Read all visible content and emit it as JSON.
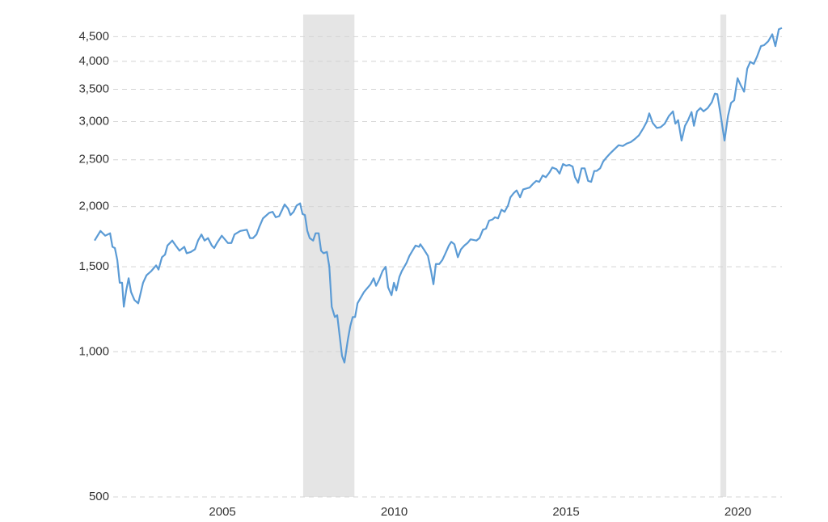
{
  "chart_data": {
    "type": "line",
    "log_scale": true,
    "grid": true,
    "color": "#5b9bd5",
    "shade_color": "#e5e5e5",
    "xlim": [
      2001.28,
      2021.28
    ],
    "ylim": [
      500,
      5000
    ],
    "xticks": [
      2005,
      2010,
      2015,
      2020
    ],
    "yticks": [
      500,
      {
        "value": 1000,
        "label": "1,000"
      },
      {
        "value": 1500,
        "label": "1,500"
      },
      {
        "value": 2000,
        "label": "2,000"
      },
      {
        "value": 2500,
        "label": "2,500"
      },
      {
        "value": 3000,
        "label": "3,000"
      },
      {
        "value": 3500,
        "label": "3,500"
      },
      {
        "value": 4000,
        "label": "4,000"
      },
      {
        "value": 4500,
        "label": "4,500"
      }
    ],
    "shaded_ranges": [
      [
        2007.35,
        2008.84
      ],
      [
        2019.49,
        2019.66
      ]
    ],
    "x": [
      2001.28,
      2001.45,
      2001.59,
      2001.73,
      2001.8,
      2001.87,
      2001.94,
      2002.01,
      2002.08,
      2002.13,
      2002.2,
      2002.27,
      2002.34,
      2002.44,
      2002.55,
      2002.69,
      2002.79,
      2002.93,
      2003.07,
      2003.14,
      2003.24,
      2003.33,
      2003.4,
      2003.54,
      2003.64,
      2003.75,
      2003.89,
      2003.96,
      2004.08,
      2004.2,
      2004.29,
      2004.39,
      2004.48,
      2004.58,
      2004.69,
      2004.76,
      2004.84,
      2004.98,
      2005.07,
      2005.16,
      2005.26,
      2005.35,
      2005.52,
      2005.71,
      2005.8,
      2005.89,
      2005.99,
      2006.08,
      2006.18,
      2006.36,
      2006.46,
      2006.55,
      2006.65,
      2006.74,
      2006.81,
      2006.91,
      2006.98,
      2007.07,
      2007.16,
      2007.26,
      2007.33,
      2007.4,
      2007.47,
      2007.54,
      2007.64,
      2007.71,
      2007.8,
      2007.87,
      2007.94,
      2008.04,
      2008.11,
      2008.18,
      2008.27,
      2008.34,
      2008.41,
      2008.48,
      2008.55,
      2008.65,
      2008.72,
      2008.79,
      2008.86,
      2008.93,
      2009.12,
      2009.31,
      2009.4,
      2009.47,
      2009.56,
      2009.66,
      2009.75,
      2009.82,
      2009.92,
      2009.99,
      2010.06,
      2010.15,
      2010.22,
      2010.36,
      2010.44,
      2010.53,
      2010.62,
      2010.72,
      2010.76,
      2010.86,
      2010.98,
      2011.07,
      2011.14,
      2011.21,
      2011.31,
      2011.4,
      2011.49,
      2011.59,
      2011.66,
      2011.75,
      2011.85,
      2011.94,
      2012.04,
      2012.13,
      2012.22,
      2012.39,
      2012.48,
      2012.58,
      2012.67,
      2012.76,
      2012.86,
      2012.93,
      2013.02,
      2013.12,
      2013.21,
      2013.31,
      2013.38,
      2013.47,
      2013.56,
      2013.66,
      2013.75,
      2013.94,
      2014.04,
      2014.13,
      2014.22,
      2014.32,
      2014.41,
      2014.51,
      2014.6,
      2014.72,
      2014.81,
      2014.91,
      2015.0,
      2015.09,
      2015.19,
      2015.26,
      2015.35,
      2015.45,
      2015.54,
      2015.64,
      2015.73,
      2015.82,
      2015.89,
      2015.99,
      2016.08,
      2016.18,
      2016.29,
      2016.41,
      2016.53,
      2016.65,
      2016.76,
      2016.88,
      2017.0,
      2017.12,
      2017.24,
      2017.35,
      2017.42,
      2017.52,
      2017.64,
      2017.75,
      2017.87,
      2017.99,
      2018.11,
      2018.18,
      2018.26,
      2018.36,
      2018.46,
      2018.55,
      2018.65,
      2018.72,
      2018.81,
      2018.91,
      2019.0,
      2019.12,
      2019.24,
      2019.33,
      2019.4,
      2019.49,
      2019.61,
      2019.71,
      2019.8,
      2019.89,
      2019.99,
      2020.08,
      2020.18,
      2020.27,
      2020.36,
      2020.46,
      2020.55,
      2020.67,
      2020.76,
      2020.88,
      2021.0,
      2021.09,
      2021.19,
      2021.28
    ],
    "values": [
      1700,
      1780,
      1740,
      1760,
      1650,
      1640,
      1550,
      1390,
      1390,
      1240,
      1340,
      1420,
      1330,
      1280,
      1260,
      1390,
      1440,
      1470,
      1510,
      1480,
      1570,
      1590,
      1660,
      1700,
      1660,
      1620,
      1650,
      1600,
      1610,
      1630,
      1700,
      1750,
      1700,
      1720,
      1660,
      1640,
      1680,
      1740,
      1710,
      1680,
      1680,
      1750,
      1780,
      1790,
      1720,
      1720,
      1750,
      1820,
      1890,
      1940,
      1950,
      1900,
      1910,
      1970,
      2020,
      1980,
      1920,
      1950,
      2010,
      2030,
      1930,
      1920,
      1780,
      1720,
      1700,
      1760,
      1760,
      1620,
      1600,
      1610,
      1500,
      1240,
      1180,
      1190,
      1080,
      980,
      950,
      1060,
      1130,
      1180,
      1180,
      1260,
      1330,
      1380,
      1420,
      1370,
      1410,
      1470,
      1500,
      1360,
      1310,
      1390,
      1340,
      1430,
      1470,
      1530,
      1580,
      1620,
      1660,
      1650,
      1670,
      1630,
      1580,
      1470,
      1380,
      1520,
      1520,
      1550,
      1600,
      1660,
      1690,
      1670,
      1570,
      1630,
      1660,
      1680,
      1710,
      1700,
      1720,
      1790,
      1800,
      1870,
      1880,
      1900,
      1890,
      1970,
      1950,
      2010,
      2090,
      2130,
      2160,
      2090,
      2170,
      2190,
      2230,
      2260,
      2250,
      2320,
      2300,
      2350,
      2410,
      2390,
      2340,
      2450,
      2430,
      2440,
      2420,
      2300,
      2240,
      2400,
      2400,
      2260,
      2250,
      2370,
      2370,
      2400,
      2480,
      2530,
      2580,
      2630,
      2680,
      2670,
      2700,
      2720,
      2760,
      2810,
      2900,
      3000,
      3120,
      2980,
      2910,
      2920,
      2970,
      3080,
      3150,
      2970,
      3020,
      2740,
      2940,
      3020,
      3140,
      2940,
      3150,
      3200,
      3150,
      3200,
      3290,
      3430,
      3420,
      3120,
      2740,
      3080,
      3280,
      3320,
      3690,
      3570,
      3460,
      3860,
      3990,
      3950,
      4080,
      4300,
      4320,
      4400,
      4550,
      4300,
      4660,
      4690
    ]
  }
}
